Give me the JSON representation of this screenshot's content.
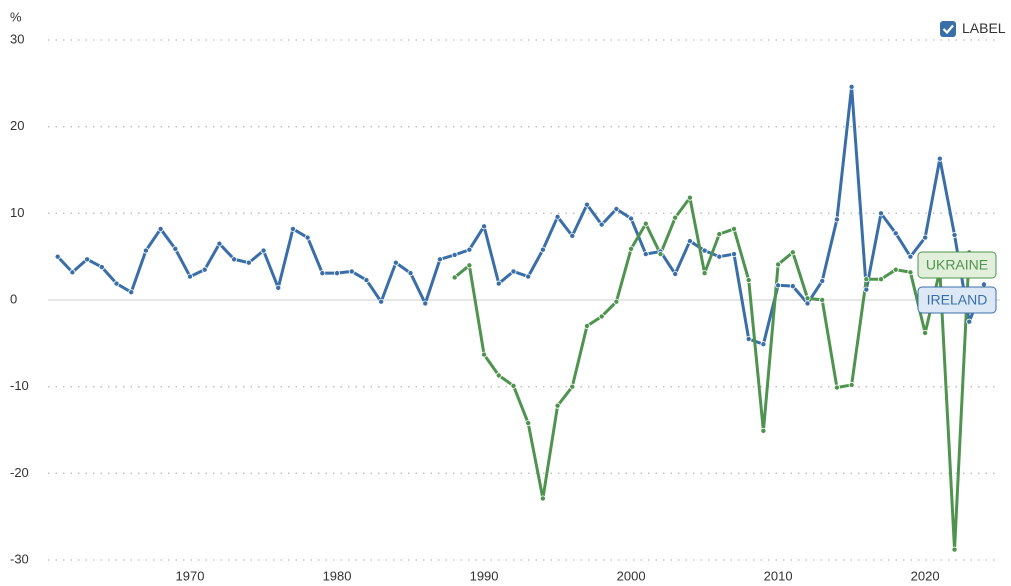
{
  "chart_data": {
    "type": "line",
    "y_axis_label": "%",
    "legend_label": "LABEL",
    "x": [
      1961,
      1962,
      1963,
      1964,
      1965,
      1966,
      1967,
      1968,
      1969,
      1970,
      1971,
      1972,
      1973,
      1974,
      1975,
      1976,
      1977,
      1978,
      1979,
      1980,
      1981,
      1982,
      1983,
      1984,
      1985,
      1986,
      1987,
      1988,
      1989,
      1990,
      1991,
      1992,
      1993,
      1994,
      1995,
      1996,
      1997,
      1998,
      1999,
      2000,
      2001,
      2002,
      2003,
      2004,
      2005,
      2006,
      2007,
      2008,
      2009,
      2010,
      2011,
      2012,
      2013,
      2014,
      2015,
      2016,
      2017,
      2018,
      2019,
      2020,
      2021,
      2022,
      2023,
      2024
    ],
    "series": [
      {
        "name": "IRELAND",
        "color": "#3a6ea8",
        "values": [
          5.0,
          3.2,
          4.7,
          3.8,
          1.9,
          0.9,
          5.7,
          8.2,
          5.9,
          2.7,
          3.5,
          6.5,
          4.7,
          4.3,
          5.7,
          1.4,
          8.2,
          7.2,
          3.1,
          3.1,
          3.3,
          2.3,
          -0.2,
          4.3,
          3.1,
          -0.4,
          4.7,
          5.2,
          5.8,
          8.5,
          1.9,
          3.3,
          2.7,
          5.8,
          9.6,
          7.4,
          11.0,
          8.7,
          10.5,
          9.4,
          5.3,
          5.6,
          3.0,
          6.8,
          5.7,
          5.0,
          5.3,
          -4.5,
          -5.1,
          1.7,
          1.6,
          -0.4,
          2.2,
          9.3,
          24.6,
          1.2,
          10.0,
          7.7,
          5.0,
          7.2,
          16.3,
          7.5,
          -2.5,
          1.8
        ]
      },
      {
        "name": "UKRAINE",
        "color": "#4e944f",
        "values": [
          null,
          null,
          null,
          null,
          null,
          null,
          null,
          null,
          null,
          null,
          null,
          null,
          null,
          null,
          null,
          null,
          null,
          null,
          null,
          null,
          null,
          null,
          null,
          null,
          null,
          null,
          null,
          2.6,
          4.0,
          -6.3,
          -8.7,
          -9.9,
          -14.2,
          -22.9,
          -12.2,
          -10.0,
          -3.0,
          -1.9,
          -0.2,
          5.9,
          8.8,
          5.3,
          9.5,
          11.8,
          3.1,
          7.6,
          8.2,
          2.3,
          -15.1,
          4.1,
          5.5,
          0.2,
          0.0,
          -10.1,
          -9.8,
          2.4,
          2.4,
          3.5,
          3.2,
          -3.8,
          3.4,
          -28.8,
          5.5,
          null
        ]
      }
    ],
    "xlim": [
      1960,
      2025.5
    ],
    "xticks": [
      1970,
      1980,
      1990,
      2000,
      2010,
      2020
    ],
    "ylim": [
      -30,
      30
    ],
    "yticks": [
      -30,
      -20,
      -10,
      0,
      10,
      20,
      30
    ],
    "grid": true
  }
}
